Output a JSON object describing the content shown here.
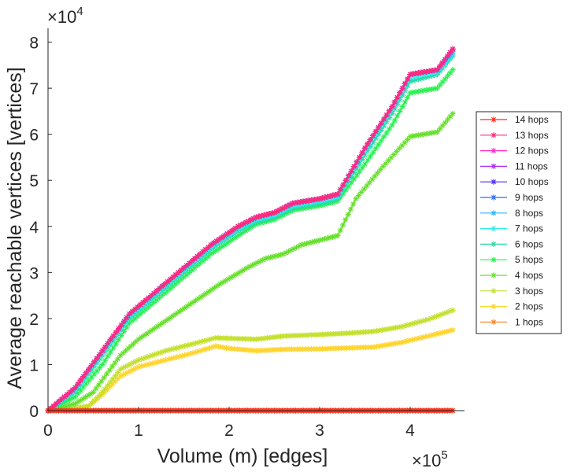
{
  "chart_data": {
    "type": "line",
    "xlabel": "Volume (m) [edges]",
    "ylabel": "Average reachable vertices [vertices]",
    "x_exponent_label": "×10",
    "x_exponent_power": "5",
    "y_exponent_label": "×10",
    "y_exponent_power": "4",
    "xlim": [
      0,
      4.5
    ],
    "ylim": [
      0,
      8.3
    ],
    "x_scale_note": "×10^5",
    "y_scale_note": "×10^4",
    "xticks": [
      0,
      1,
      2,
      3,
      4
    ],
    "xtick_labels": [
      "0",
      "1",
      "2",
      "3",
      "4"
    ],
    "yticks": [
      0,
      1,
      2,
      3,
      4,
      5,
      6,
      7,
      8
    ],
    "ytick_labels": [
      "0",
      "1",
      "2",
      "3",
      "4",
      "5",
      "6",
      "7",
      "8"
    ],
    "grid": false,
    "legend_position": "right",
    "series": [
      {
        "name": "14 hops",
        "color": "#ff2a1a",
        "x": [
          0,
          0.5,
          1,
          1.5,
          2,
          2.5,
          3,
          3.5,
          4,
          4.47
        ],
        "y": [
          0,
          0,
          0,
          0,
          0,
          0,
          0,
          0,
          0,
          0
        ]
      },
      {
        "name": "13 hops",
        "color": "#ff2a7a",
        "x": [
          0,
          0.3,
          0.6,
          0.9,
          1.2,
          1.5,
          1.8,
          2.1,
          2.3,
          2.5,
          2.7,
          3.0,
          3.2,
          3.5,
          3.8,
          4.0,
          4.3,
          4.47
        ],
        "y": [
          0,
          0.5,
          1.3,
          2.1,
          2.6,
          3.1,
          3.6,
          4.0,
          4.2,
          4.3,
          4.5,
          4.6,
          4.7,
          5.7,
          6.6,
          7.3,
          7.4,
          7.85
        ]
      },
      {
        "name": "12 hops",
        "color": "#ff2ad0",
        "x": [
          0,
          0.3,
          0.6,
          0.9,
          1.2,
          1.5,
          1.8,
          2.1,
          2.3,
          2.5,
          2.7,
          3.0,
          3.2,
          3.5,
          3.8,
          4.0,
          4.3,
          4.47
        ],
        "y": [
          0,
          0.5,
          1.3,
          2.1,
          2.6,
          3.1,
          3.6,
          4.0,
          4.2,
          4.3,
          4.5,
          4.6,
          4.7,
          5.7,
          6.6,
          7.3,
          7.4,
          7.85
        ]
      },
      {
        "name": "11 hops",
        "color": "#b02aff",
        "x": [
          0,
          0.3,
          0.6,
          0.9,
          1.2,
          1.5,
          1.8,
          2.1,
          2.3,
          2.5,
          2.7,
          3.0,
          3.2,
          3.5,
          3.8,
          4.0,
          4.3,
          4.47
        ],
        "y": [
          0,
          0.5,
          1.3,
          2.1,
          2.6,
          3.1,
          3.6,
          4.0,
          4.2,
          4.3,
          4.5,
          4.6,
          4.7,
          5.7,
          6.6,
          7.3,
          7.4,
          7.85
        ]
      },
      {
        "name": "10 hops",
        "color": "#4a2aff",
        "x": [
          0,
          0.3,
          0.6,
          0.9,
          1.2,
          1.5,
          1.8,
          2.1,
          2.3,
          2.5,
          2.7,
          3.0,
          3.2,
          3.5,
          3.8,
          4.0,
          4.3,
          4.47
        ],
        "y": [
          0,
          0.5,
          1.3,
          2.1,
          2.6,
          3.1,
          3.6,
          4.0,
          4.2,
          4.3,
          4.5,
          4.6,
          4.7,
          5.7,
          6.6,
          7.3,
          7.4,
          7.85
        ]
      },
      {
        "name": "9 hops",
        "color": "#2a6aff",
        "x": [
          0,
          0.3,
          0.6,
          0.9,
          1.2,
          1.5,
          1.8,
          2.1,
          2.3,
          2.5,
          2.7,
          3.0,
          3.2,
          3.5,
          3.8,
          4.0,
          4.3,
          4.47
        ],
        "y": [
          0,
          0.5,
          1.3,
          2.1,
          2.6,
          3.1,
          3.6,
          4.0,
          4.2,
          4.3,
          4.5,
          4.6,
          4.7,
          5.7,
          6.6,
          7.3,
          7.4,
          7.85
        ]
      },
      {
        "name": "8 hops",
        "color": "#2ab4ff",
        "x": [
          0,
          0.3,
          0.6,
          0.9,
          1.2,
          1.5,
          1.8,
          2.1,
          2.3,
          2.5,
          2.7,
          3.0,
          3.2,
          3.5,
          3.8,
          4.0,
          4.3,
          4.47
        ],
        "y": [
          0,
          0.5,
          1.3,
          2.1,
          2.6,
          3.1,
          3.6,
          4.0,
          4.2,
          4.3,
          4.5,
          4.6,
          4.7,
          5.7,
          6.6,
          7.3,
          7.4,
          7.8
        ]
      },
      {
        "name": "7 hops",
        "color": "#2af0f0",
        "x": [
          0,
          0.3,
          0.6,
          0.9,
          1.2,
          1.5,
          1.8,
          2.1,
          2.3,
          2.5,
          2.7,
          3.0,
          3.2,
          3.5,
          3.8,
          4.0,
          4.3,
          4.47
        ],
        "y": [
          0,
          0.45,
          1.25,
          2.05,
          2.55,
          3.05,
          3.55,
          3.95,
          4.15,
          4.25,
          4.45,
          4.55,
          4.65,
          5.65,
          6.55,
          7.25,
          7.35,
          7.75
        ]
      },
      {
        "name": "6 hops",
        "color": "#2ad8a6",
        "x": [
          0,
          0.3,
          0.6,
          0.9,
          1.2,
          1.5,
          1.8,
          2.1,
          2.3,
          2.5,
          2.7,
          3.0,
          3.2,
          3.5,
          3.8,
          4.0,
          4.3,
          4.47
        ],
        "y": [
          0,
          0.4,
          1.2,
          2.0,
          2.5,
          3.0,
          3.5,
          3.9,
          4.1,
          4.2,
          4.4,
          4.5,
          4.6,
          5.55,
          6.45,
          7.15,
          7.3,
          7.7
        ]
      },
      {
        "name": "5 hops",
        "color": "#2af050",
        "x": [
          0,
          0.3,
          0.6,
          0.9,
          1.2,
          1.5,
          1.8,
          2.1,
          2.3,
          2.5,
          2.7,
          3.0,
          3.2,
          3.5,
          3.8,
          4.0,
          4.3,
          4.47
        ],
        "y": [
          0,
          0.3,
          1.0,
          1.9,
          2.4,
          2.9,
          3.4,
          3.8,
          4.05,
          4.15,
          4.35,
          4.45,
          4.55,
          5.35,
          6.2,
          6.9,
          7.0,
          7.4
        ]
      },
      {
        "name": "4 hops",
        "color": "#66e02a",
        "x": [
          0,
          0.3,
          0.5,
          0.8,
          1.0,
          1.3,
          1.6,
          1.9,
          2.2,
          2.4,
          2.6,
          2.8,
          3.0,
          3.2,
          3.4,
          3.7,
          4.0,
          4.3,
          4.47
        ],
        "y": [
          0,
          0.15,
          0.4,
          1.2,
          1.55,
          1.95,
          2.35,
          2.75,
          3.1,
          3.3,
          3.4,
          3.6,
          3.7,
          3.8,
          4.6,
          5.3,
          5.95,
          6.05,
          6.45
        ]
      },
      {
        "name": "3 hops",
        "color": "#c4e02a",
        "x": [
          0,
          0.3,
          0.45,
          0.6,
          0.8,
          1.0,
          1.3,
          1.6,
          1.85,
          2.0,
          2.3,
          2.6,
          3.0,
          3.3,
          3.6,
          3.9,
          4.2,
          4.47
        ],
        "y": [
          0,
          0.05,
          0.1,
          0.4,
          0.9,
          1.1,
          1.3,
          1.45,
          1.58,
          1.57,
          1.55,
          1.62,
          1.65,
          1.68,
          1.72,
          1.82,
          1.98,
          2.18
        ]
      },
      {
        "name": "2 hops",
        "color": "#ffd42a",
        "x": [
          0,
          0.3,
          0.45,
          0.6,
          0.8,
          1.0,
          1.3,
          1.6,
          1.85,
          2.0,
          2.3,
          2.6,
          3.0,
          3.3,
          3.6,
          3.9,
          4.2,
          4.47
        ],
        "y": [
          0,
          0.05,
          0.1,
          0.35,
          0.75,
          0.95,
          1.1,
          1.25,
          1.4,
          1.35,
          1.3,
          1.33,
          1.34,
          1.36,
          1.38,
          1.48,
          1.62,
          1.75
        ]
      },
      {
        "name": "1 hops",
        "color": "#ff8a2a",
        "x": [
          0,
          0.5,
          1,
          1.5,
          2,
          2.5,
          3,
          3.5,
          4,
          4.47
        ],
        "y": [
          0.005,
          0.005,
          0.005,
          0.005,
          0.005,
          0.005,
          0.005,
          0.005,
          0.005,
          0.005
        ]
      }
    ]
  }
}
